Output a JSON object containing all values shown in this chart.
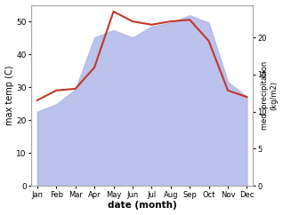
{
  "months": [
    "Jan",
    "Feb",
    "Mar",
    "Apr",
    "May",
    "Jun",
    "Jul",
    "Aug",
    "Sep",
    "Oct",
    "Nov",
    "Dec"
  ],
  "month_positions": [
    0,
    1,
    2,
    3,
    4,
    5,
    6,
    7,
    8,
    9,
    10,
    11
  ],
  "temp_max": [
    26,
    29,
    29.5,
    36,
    53,
    50,
    49,
    50,
    50.5,
    44,
    29,
    27
  ],
  "precip": [
    10,
    11,
    13,
    20,
    21,
    20,
    21.5,
    22,
    23,
    22,
    14,
    12
  ],
  "temp_ylim": [
    0,
    55
  ],
  "precip_ylim": [
    0,
    24.4
  ],
  "temp_yticks": [
    0,
    10,
    20,
    30,
    40,
    50
  ],
  "precip_yticks": [
    0,
    5,
    10,
    15,
    20
  ],
  "temp_color": "#c0392b",
  "precip_fill_color": "#b0b8e8",
  "xlabel": "date (month)",
  "ylabel_left": "max temp (C)",
  "ylabel_right": "med. precipitation\n(kg/m2)",
  "background_color": "#ffffff"
}
